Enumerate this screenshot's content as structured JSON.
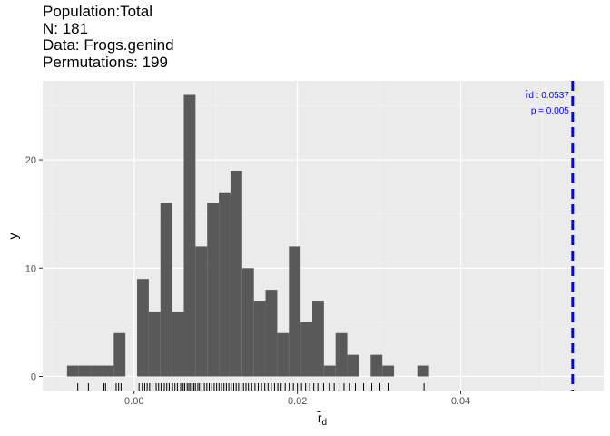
{
  "header": {
    "line1": "Population:Total",
    "line2": "N: 181",
    "line3": "Data: Frogs.genind",
    "line4": "Permutations: 199"
  },
  "chart_data": {
    "type": "bar",
    "subtype": "histogram",
    "xlabel": "r̄d",
    "ylabel": "y",
    "xlim": [
      -0.0112,
      0.0575
    ],
    "ylim": [
      -1.3,
      27.3
    ],
    "x_ticks": [
      {
        "value": 0.0,
        "label": "0.00"
      },
      {
        "value": 0.02,
        "label": "0.02"
      },
      {
        "value": 0.04,
        "label": "0.04"
      }
    ],
    "y_ticks": [
      {
        "value": 0,
        "label": "0"
      },
      {
        "value": 10,
        "label": "10"
      },
      {
        "value": 20,
        "label": "20"
      }
    ],
    "bin_width": 0.00143,
    "bins": [
      {
        "x": -0.0075,
        "count": 1
      },
      {
        "x": -0.00607,
        "count": 1
      },
      {
        "x": -0.00464,
        "count": 1
      },
      {
        "x": -0.00321,
        "count": 1
      },
      {
        "x": -0.00178,
        "count": 4
      },
      {
        "x": -0.00035,
        "count": 0
      },
      {
        "x": 0.00108,
        "count": 9
      },
      {
        "x": 0.00251,
        "count": 6
      },
      {
        "x": 0.00394,
        "count": 16
      },
      {
        "x": 0.00537,
        "count": 6
      },
      {
        "x": 0.0068,
        "count": 26
      },
      {
        "x": 0.00823,
        "count": 12
      },
      {
        "x": 0.00966,
        "count": 16
      },
      {
        "x": 0.01109,
        "count": 17
      },
      {
        "x": 0.01252,
        "count": 19
      },
      {
        "x": 0.01395,
        "count": 10
      },
      {
        "x": 0.01538,
        "count": 7
      },
      {
        "x": 0.01681,
        "count": 8
      },
      {
        "x": 0.01824,
        "count": 4
      },
      {
        "x": 0.01967,
        "count": 12
      },
      {
        "x": 0.0211,
        "count": 5
      },
      {
        "x": 0.02253,
        "count": 7
      },
      {
        "x": 0.02396,
        "count": 1
      },
      {
        "x": 0.02539,
        "count": 4
      },
      {
        "x": 0.02682,
        "count": 2
      },
      {
        "x": 0.02825,
        "count": 0
      },
      {
        "x": 0.02968,
        "count": 2
      },
      {
        "x": 0.03111,
        "count": 1
      },
      {
        "x": 0.03254,
        "count": 0
      },
      {
        "x": 0.03397,
        "count": 0
      },
      {
        "x": 0.0354,
        "count": 1
      }
    ],
    "rug": [
      -0.0069,
      -0.0056,
      -0.0037,
      -0.0035,
      -0.0022,
      -0.0019,
      -0.0016,
      0.0006,
      0.001,
      0.0013,
      0.0016,
      0.0019,
      0.0022,
      0.0027,
      0.003,
      0.0033,
      0.0037,
      0.004,
      0.0043,
      0.0047,
      0.005,
      0.0053,
      0.0057,
      0.006,
      0.0062,
      0.0065,
      0.0067,
      0.0069,
      0.0071,
      0.0073,
      0.0075,
      0.0078,
      0.008,
      0.0083,
      0.0086,
      0.0089,
      0.0092,
      0.0095,
      0.0098,
      0.0101,
      0.0104,
      0.0107,
      0.011,
      0.0113,
      0.0116,
      0.0119,
      0.0122,
      0.0125,
      0.0128,
      0.0131,
      0.0134,
      0.0137,
      0.014,
      0.0144,
      0.0148,
      0.0152,
      0.0156,
      0.016,
      0.0164,
      0.0168,
      0.0172,
      0.0176,
      0.018,
      0.0185,
      0.019,
      0.0195,
      0.02,
      0.0205,
      0.021,
      0.0215,
      0.022,
      0.0225,
      0.0232,
      0.0239,
      0.0245,
      0.0251,
      0.0257,
      0.0264,
      0.0271,
      0.0281,
      0.0291,
      0.0301,
      0.0311,
      0.0355
    ],
    "observed": {
      "value": 0.0537,
      "label": "r̄d : 0.0537",
      "p_label": "p = 0.005",
      "color": "#0000ff"
    },
    "bar_color": "#595959",
    "panel_background": "#ebebeb",
    "grid": true
  }
}
